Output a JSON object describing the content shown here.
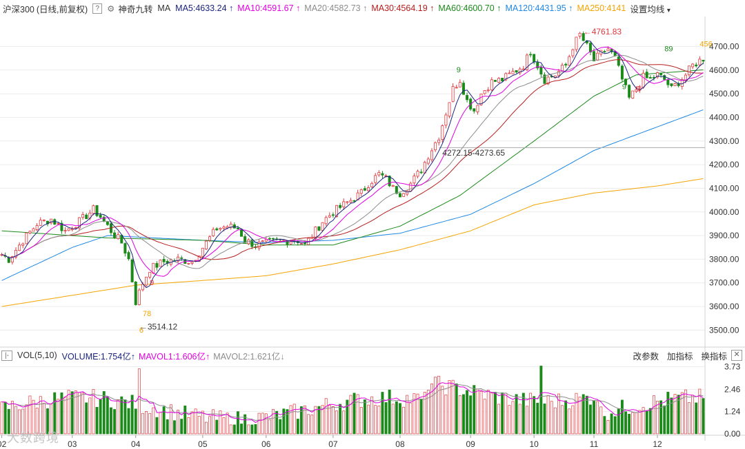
{
  "header": {
    "symbol": "沪深300",
    "mode": "(日线,前复权)",
    "help": "?",
    "gear_icon": "gear-icon",
    "indicator": "神奇九转",
    "ma_label": "MA",
    "ma": [
      {
        "text": "MA5:4633.24",
        "arrow": "↑",
        "color": "#1a237e"
      },
      {
        "text": "MA10:4591.67",
        "arrow": "↑",
        "color": "#e000e0"
      },
      {
        "text": "MA20:4582.73",
        "arrow": "↑",
        "color": "#8c8c8c"
      },
      {
        "text": "MA30:4564.19",
        "arrow": "↑",
        "color": "#b71c1c"
      },
      {
        "text": "MA60:4600.70",
        "arrow": "↑",
        "color": "#1b8a1b"
      },
      {
        "text": "MA120:4431.95",
        "arrow": "↑",
        "color": "#1e88e5"
      },
      {
        "text": "MA250:4141",
        "arrow": "",
        "color": "#f5a300"
      }
    ],
    "settings": "设置均线",
    "settings_arrow": "▾"
  },
  "volume_header": {
    "collapse": "|-",
    "label": "VOL(5,10)",
    "volume": "VOLUME:1.754亿",
    "volume_arrow": "↑",
    "mavol1": "MAVOL1:1.606亿",
    "mavol1_arrow": "↑",
    "mavol2": "MAVOL2:1.621亿",
    "mavol2_arrow": "↓",
    "btn_params": "改参数",
    "btn_add": "加指标",
    "btn_switch": "换指标",
    "close": "✕"
  },
  "watermark": "大数跨境",
  "colors": {
    "up": "#e0383e",
    "down": "#1b8a1b",
    "ma5": "#1a237e",
    "ma10": "#e000e0",
    "ma20": "#8c8c8c",
    "ma30": "#b71c1c",
    "ma60": "#1b8a1b",
    "ma120": "#1e88e5",
    "ma250": "#f5a300",
    "vol_ma1": "#e000e0",
    "vol_ma2": "#8c8c8c"
  },
  "chart_data": {
    "type": "candlestick",
    "title": "沪深300 (日线,前复权)",
    "x_ticks": [
      {
        "label": "02",
        "i": 0
      },
      {
        "label": "03",
        "i": 20
      },
      {
        "label": "04",
        "i": 38
      },
      {
        "label": "05",
        "i": 57
      },
      {
        "label": "06",
        "i": 75
      },
      {
        "label": "07",
        "i": 94
      },
      {
        "label": "08",
        "i": 113
      },
      {
        "label": "09",
        "i": 133
      },
      {
        "label": "10",
        "i": 151
      },
      {
        "label": "11",
        "i": 168
      },
      {
        "label": "12",
        "i": 186
      }
    ],
    "y_ticks": [
      "3500.00",
      "3600.00",
      "3700.00",
      "3800.00",
      "3900.00",
      "4000.00",
      "4100.00",
      "4200.00",
      "4300.00",
      "4400.00",
      "4500.00",
      "4600.00",
      "4700.00"
    ],
    "ylim": [
      3440,
      4780
    ],
    "vol_ticks": [
      "0.00",
      "1.24",
      "2.46",
      "3.73"
    ],
    "vol_ylim": [
      0,
      3.9
    ],
    "price_anchors": [
      [
        0,
        3820
      ],
      [
        2,
        3800
      ],
      [
        6,
        3880
      ],
      [
        10,
        3950
      ],
      [
        14,
        3970
      ],
      [
        18,
        3920
      ],
      [
        22,
        3960
      ],
      [
        26,
        4010
      ],
      [
        28,
        3980
      ],
      [
        31,
        3920
      ],
      [
        34,
        3870
      ],
      [
        36,
        3800
      ],
      [
        38,
        3620
      ],
      [
        40,
        3700
      ],
      [
        42,
        3760
      ],
      [
        46,
        3790
      ],
      [
        50,
        3800
      ],
      [
        54,
        3790
      ],
      [
        57,
        3850
      ],
      [
        61,
        3930
      ],
      [
        64,
        3940
      ],
      [
        67,
        3930
      ],
      [
        69,
        3880
      ],
      [
        72,
        3860
      ],
      [
        76,
        3870
      ],
      [
        80,
        3880
      ],
      [
        84,
        3880
      ],
      [
        86,
        3860
      ],
      [
        88,
        3900
      ],
      [
        91,
        3960
      ],
      [
        94,
        4000
      ],
      [
        98,
        4040
      ],
      [
        102,
        4080
      ],
      [
        104,
        4120
      ],
      [
        107,
        4160
      ],
      [
        109,
        4140
      ],
      [
        111,
        4100
      ],
      [
        113,
        4080
      ],
      [
        116,
        4120
      ],
      [
        119,
        4180
      ],
      [
        121,
        4240
      ],
      [
        124,
        4320
      ],
      [
        126,
        4420
      ],
      [
        128,
        4520
      ],
      [
        130,
        4560
      ],
      [
        132,
        4470
      ],
      [
        134,
        4430
      ],
      [
        136,
        4500
      ],
      [
        139,
        4550
      ],
      [
        142,
        4560
      ],
      [
        145,
        4590
      ],
      [
        148,
        4620
      ],
      [
        150,
        4680
      ],
      [
        152,
        4620
      ],
      [
        154,
        4560
      ],
      [
        157,
        4580
      ],
      [
        160,
        4620
      ],
      [
        162,
        4700
      ],
      [
        164,
        4750
      ],
      [
        166,
        4700
      ],
      [
        168,
        4640
      ],
      [
        170,
        4670
      ],
      [
        172,
        4690
      ],
      [
        174,
        4650
      ],
      [
        176,
        4560
      ],
      [
        178,
        4480
      ],
      [
        180,
        4520
      ],
      [
        182,
        4570
      ],
      [
        184,
        4560
      ],
      [
        186,
        4580
      ],
      [
        188,
        4560
      ],
      [
        190,
        4520
      ],
      [
        192,
        4550
      ],
      [
        194,
        4580
      ],
      [
        196,
        4620
      ],
      [
        199,
        4650
      ]
    ],
    "ma250_anchors": [
      [
        0,
        3600
      ],
      [
        38,
        3690
      ],
      [
        57,
        3710
      ],
      [
        75,
        3730
      ],
      [
        94,
        3780
      ],
      [
        113,
        3840
      ],
      [
        133,
        3920
      ],
      [
        151,
        4030
      ],
      [
        168,
        4080
      ],
      [
        186,
        4110
      ],
      [
        199,
        4141
      ]
    ],
    "ma120_anchors": [
      [
        0,
        3710
      ],
      [
        20,
        3850
      ],
      [
        30,
        3900
      ],
      [
        57,
        3880
      ],
      [
        75,
        3870
      ],
      [
        94,
        3880
      ],
      [
        113,
        3910
      ],
      [
        133,
        3990
      ],
      [
        151,
        4120
      ],
      [
        168,
        4260
      ],
      [
        186,
        4360
      ],
      [
        199,
        4432
      ]
    ],
    "ma60_anchors": [
      [
        0,
        3920
      ],
      [
        30,
        3890
      ],
      [
        57,
        3880
      ],
      [
        75,
        3860
      ],
      [
        94,
        3860
      ],
      [
        113,
        3940
      ],
      [
        130,
        4070
      ],
      [
        151,
        4300
      ],
      [
        168,
        4490
      ],
      [
        180,
        4580
      ],
      [
        199,
        4601
      ]
    ],
    "horizontal_ref": 4272.15,
    "annotations": [
      {
        "text": "←3514.12",
        "i": 39,
        "price": 3514.12,
        "color": "#333"
      },
      {
        "text": "←4761.83",
        "i": 165,
        "price": 4761.83,
        "color": "#e0383e"
      },
      {
        "text": "4272.15-4273.65",
        "i": 125,
        "price": 4250,
        "color": "#333"
      }
    ],
    "nine_turn_labels": [
      {
        "text": "78",
        "i": 40,
        "price": 3560,
        "color": "#f5a300"
      },
      {
        "text": "6",
        "i": 39,
        "price": 3490,
        "color": "#f5a300"
      },
      {
        "text": "9",
        "i": 42,
        "price": 3690,
        "color": "#e0383e"
      },
      {
        "text": "9",
        "i": 129,
        "price": 4590,
        "color": "#1b8a1b"
      },
      {
        "text": "9",
        "i": 176,
        "price": 4520,
        "color": "#1b8a1b"
      },
      {
        "text": "9",
        "i": 180,
        "price": 4510,
        "color": "#e0383e"
      },
      {
        "text": "89",
        "i": 188,
        "price": 4680,
        "color": "#1b8a1b"
      },
      {
        "text": "456",
        "i": 198,
        "price": 4700,
        "color": "#f5a300"
      }
    ]
  }
}
